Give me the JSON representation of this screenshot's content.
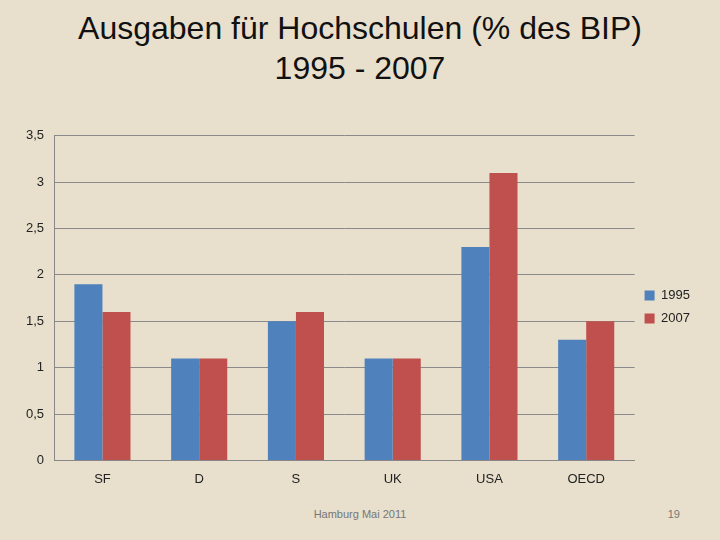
{
  "chart_data": {
    "type": "bar",
    "title": "Ausgaben für Hochschulen (% des BIP) 1995 - 2007",
    "categories": [
      "SF",
      "D",
      "S",
      "UK",
      "USA",
      "OECD"
    ],
    "series": [
      {
        "name": "1995",
        "color": "#4f81bd",
        "values": [
          1.9,
          1.1,
          1.5,
          1.1,
          2.3,
          1.3
        ]
      },
      {
        "name": "2007",
        "color": "#c0504d",
        "values": [
          1.6,
          1.1,
          1.6,
          1.1,
          3.1,
          1.5
        ]
      }
    ],
    "ylim": [
      0,
      3.5
    ],
    "yticks": [
      0,
      {
        "value": 0.5,
        "label": "0,5"
      },
      1,
      {
        "value": 1.5,
        "label": "1,5"
      },
      2,
      {
        "value": 2.5,
        "label": "2,5"
      },
      3,
      {
        "value": 3.5,
        "label": "3,5"
      }
    ],
    "grid": true,
    "legend": "right",
    "annotations": [
      "Hamburg Mai 2011",
      "19"
    ]
  }
}
